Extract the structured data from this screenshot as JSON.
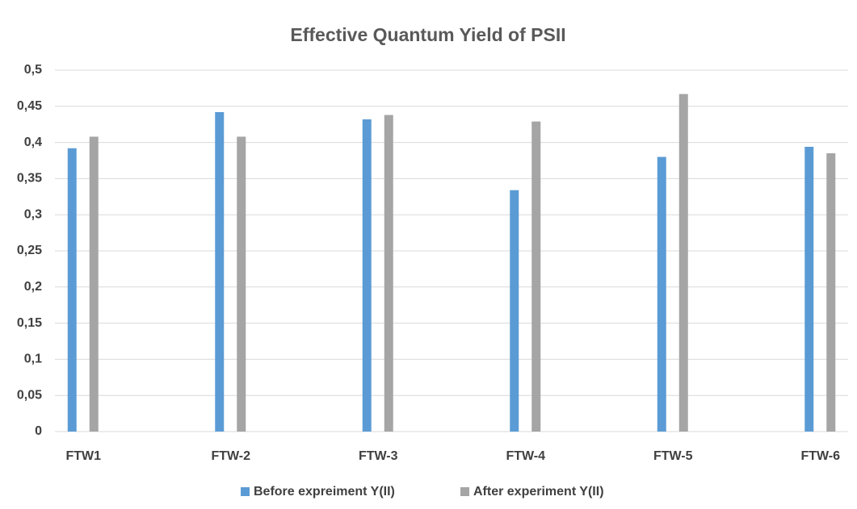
{
  "chart_data": {
    "type": "bar",
    "title": "Effective Quantum Yield of PSII",
    "categories": [
      "FTW1",
      "FTW-2",
      "FTW-3",
      "FTW-4",
      "FTW-5",
      "FTW-6"
    ],
    "series": [
      {
        "name": "Before expreiment Y(II)",
        "color": "#5b9bd5",
        "values": [
          0.392,
          0.442,
          0.432,
          0.334,
          0.38,
          0.394
        ]
      },
      {
        "name": "After experiment Y(II)",
        "color": "#a5a5a5",
        "values": [
          0.408,
          0.408,
          0.438,
          0.429,
          0.467,
          0.385
        ]
      }
    ],
    "ylim": [
      0,
      0.5
    ],
    "yticks": [
      0,
      {
        "value": 0.05,
        "label": "0,05"
      },
      {
        "value": 0.1,
        "label": "0,1"
      },
      {
        "value": 0.15,
        "label": "0,15"
      },
      {
        "value": 0.2,
        "label": "0,2"
      },
      {
        "value": 0.25,
        "label": "0,25"
      },
      {
        "value": 0.3,
        "label": "0,3"
      },
      {
        "value": 0.35,
        "label": "0,35"
      },
      {
        "value": 0.4,
        "label": "0,4"
      },
      {
        "value": 0.45,
        "label": "0,45"
      },
      {
        "value": 0.5,
        "label": "0,5"
      }
    ],
    "grid": true,
    "legend": "bottom"
  }
}
